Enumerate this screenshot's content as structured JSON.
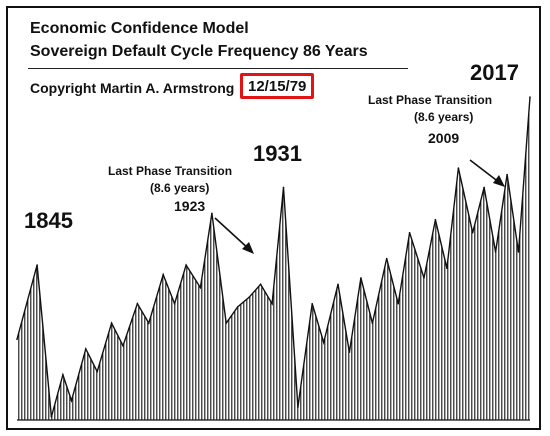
{
  "header": {
    "title_line1": "Economic Confidence Model",
    "title_line2": "Sovereign Default Cycle Frequency 86 Years",
    "copyright": "Copyright Martin A. Armstrong",
    "date": "12/15/79"
  },
  "annotations": {
    "year_1845": "1845",
    "year_1931": "1931",
    "year_2017": "2017",
    "left_transition": {
      "label": "Last Phase Transition",
      "period": "(8.6 years)",
      "year": "1923"
    },
    "right_transition": {
      "label": "Last Phase Transition",
      "period": "(8.6 years)",
      "year": "2009"
    }
  },
  "colors": {
    "highlight_box": "#e01414",
    "ink": "#111111"
  },
  "chart_data": {
    "type": "area",
    "title": "Sovereign Default Cycle Frequency 86 Years",
    "xlabel": "",
    "ylabel": "",
    "grid": false,
    "legend": "none",
    "x": [
      1838,
      1845,
      1850,
      1854,
      1857,
      1862,
      1866,
      1871,
      1875,
      1880,
      1884,
      1889,
      1893,
      1897,
      1902,
      1906,
      1911,
      1915,
      1919,
      1923,
      1927,
      1931,
      1936,
      1941,
      1945,
      1950,
      1954,
      1958,
      1962,
      1967,
      1971,
      1975,
      1980,
      1984,
      1988,
      1992,
      1997,
      2001,
      2005,
      2009,
      2013,
      2017
    ],
    "y": [
      25,
      48,
      1,
      14,
      6,
      22,
      15,
      30,
      23,
      36,
      30,
      45,
      36,
      48,
      41,
      64,
      30,
      35,
      38,
      42,
      36,
      72,
      4,
      36,
      24,
      42,
      21,
      44,
      30,
      50,
      36,
      58,
      44,
      62,
      47,
      78,
      58,
      72,
      52,
      76,
      52,
      100
    ],
    "labeled_peaks": {
      "1845": 48,
      "1931": 72,
      "2017": 100
    }
  }
}
